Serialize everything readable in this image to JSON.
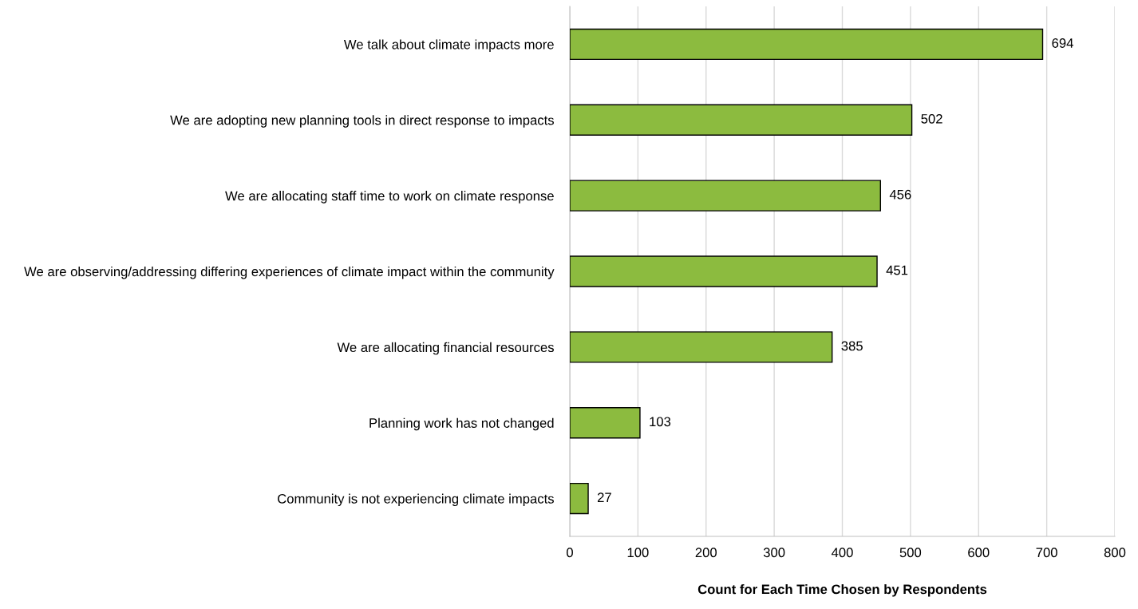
{
  "chart_data": {
    "type": "bar",
    "orientation": "horizontal",
    "xlabel": "Count for Each Time Chosen by Respondents",
    "categories": [
      "We talk about climate impacts more",
      "We are adopting new planning tools in direct response to impacts",
      "We are allocating staff time to work on climate response",
      "We are observing/addressing differing experiences of climate impact within the community",
      "We are allocating financial resources",
      "Planning work has not changed",
      "Community is not experiencing climate impacts"
    ],
    "values": [
      694,
      502,
      456,
      451,
      385,
      103,
      27
    ],
    "color": "#8cbb3f",
    "xlim": [
      0,
      800
    ],
    "xticks": [
      0,
      100,
      200,
      300,
      400,
      500,
      600,
      700,
      800
    ],
    "grid": "x",
    "data_labels": true,
    "legend": false
  }
}
